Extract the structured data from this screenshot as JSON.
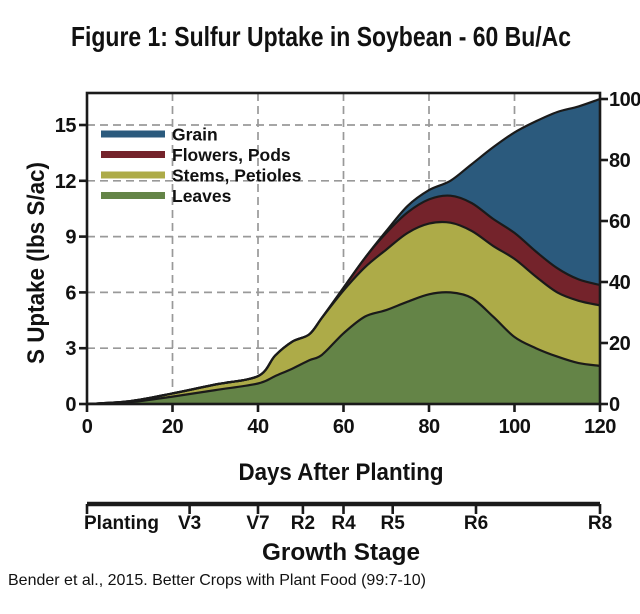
{
  "title": "Figure 1: Sulfur Uptake in Soybean - 60 Bu/Ac",
  "citation": "Bender et al., 2015. Better Crops with Plant Food (99:7-10)",
  "legend": [
    "Grain",
    "Flowers, Pods",
    "Stems, Petioles",
    "Leaves"
  ],
  "chart_data": {
    "type": "area",
    "stacked": true,
    "title": "Figure 1: Sulfur Uptake in Soybean - 60 Bu/Ac",
    "xlabel": "Days After Planting",
    "ylabel": "S Uptake (lbs S/ac)",
    "xlim": [
      0,
      120
    ],
    "ylim": [
      0,
      16.7
    ],
    "y2lim": [
      0,
      102
    ],
    "grid": true,
    "legend_position": "upper-left",
    "xticks": [
      "0",
      "20",
      "40",
      "60",
      "80",
      "100",
      "120"
    ],
    "yticks": [
      "0",
      "3",
      "6",
      "9",
      "12",
      "15"
    ],
    "y2ticks": [
      "0",
      "20",
      "40",
      "60",
      "80",
      "100"
    ],
    "x": [
      0,
      10,
      20,
      30,
      40,
      44,
      48,
      52,
      55,
      60,
      65,
      70,
      75,
      80,
      85,
      90,
      95,
      100,
      105,
      110,
      115,
      120
    ],
    "series": [
      {
        "name": "Leaves",
        "color": "#648447",
        "values": [
          0,
          0.1,
          0.4,
          0.75,
          1.1,
          1.5,
          1.9,
          2.35,
          2.65,
          3.8,
          4.7,
          5.05,
          5.5,
          5.9,
          6.0,
          5.7,
          4.7,
          3.6,
          3.0,
          2.55,
          2.2,
          2.05
        ]
      },
      {
        "name": "Stems, Petioles",
        "color": "#adab48",
        "values": [
          0,
          0.05,
          0.17,
          0.3,
          0.4,
          1.1,
          1.45,
          1.4,
          2.0,
          2.3,
          2.65,
          3.25,
          3.7,
          3.8,
          3.75,
          3.6,
          3.8,
          4.2,
          3.85,
          3.45,
          3.35,
          3.25
        ]
      },
      {
        "name": "Flowers, Pods",
        "color": "#74232b",
        "values": [
          0,
          0,
          0,
          0,
          0,
          0,
          0,
          0,
          0,
          0.15,
          0.5,
          0.9,
          1.1,
          1.3,
          1.45,
          1.5,
          1.45,
          1.4,
          1.35,
          1.3,
          1.15,
          1.1
        ]
      },
      {
        "name": "Grain",
        "color": "#2b5a7d",
        "values": [
          0,
          0,
          0,
          0,
          0,
          0,
          0,
          0,
          0,
          0,
          0,
          0.1,
          0.35,
          0.5,
          0.8,
          2.1,
          3.85,
          5.4,
          7.0,
          8.4,
          9.3,
          10.0
        ]
      }
    ]
  },
  "growth_stage_axis": {
    "title": "Growth Stage",
    "stages": [
      {
        "label": "Planting",
        "day": 0
      },
      {
        "label": "V3",
        "day": 24
      },
      {
        "label": "V7",
        "day": 40
      },
      {
        "label": "R2",
        "day": 50.5
      },
      {
        "label": "R4",
        "day": 60
      },
      {
        "label": "R5",
        "day": 71.5
      },
      {
        "label": "R6",
        "day": 91
      },
      {
        "label": "R8",
        "day": 120
      }
    ]
  }
}
